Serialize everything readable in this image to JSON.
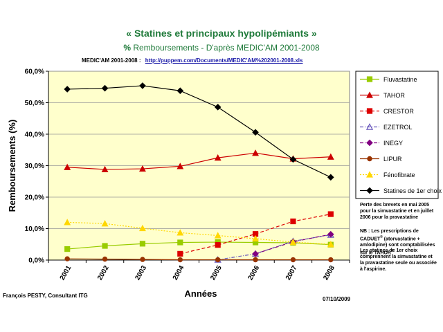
{
  "header": {
    "title": "« Statines et principaux hypolipémiants »",
    "subtitle_bold": "%",
    "subtitle_rest": "Remboursements - D'après MEDIC'AM 2001-2008",
    "source_label": "MEDIC'AM 2001-2008 :",
    "source_url": "http://puppem.com/Documents/MEDIC'AM%202001-2008.xls"
  },
  "notes": {
    "note1": "Perte des brevets en mai 2005 pour la simvastatine et en juillet 2006 pour la pravastatine",
    "note2_a": "NB : Les prescriptions de CADUET",
    "note2_sup1": "®",
    "note2_b": " (atorvastatine + amlodipine) sont comptabilisées sur le TAHOR",
    "note2_sup2": "®",
    "note3": "Les statines de 1er choix comprennent la simvastatine et la pravastatine seule ou associée à l'aspirine."
  },
  "footer": {
    "author": "François PESTY, Consultant ITG",
    "date": "07/10/2009"
  },
  "chart_data": {
    "type": "line",
    "title": "",
    "xlabel": "Années",
    "ylabel": "Remboursements (%)",
    "ylim": [
      0,
      60
    ],
    "yticks": [
      "0,0%",
      "10,0%",
      "20,0%",
      "30,0%",
      "40,0%",
      "50,0%",
      "60,0%"
    ],
    "categories": [
      "2001",
      "2002",
      "2003",
      "2004",
      "2005",
      "2006",
      "2007",
      "2008"
    ],
    "grid": true,
    "legend_position": "right",
    "plot_background": "#ffffcc",
    "series": [
      {
        "name": "Fluvastatine",
        "color": "#99cc00",
        "marker": "square",
        "dash": "solid",
        "values": [
          3.5,
          4.5,
          5.2,
          5.6,
          5.7,
          5.6,
          5.5,
          4.9
        ]
      },
      {
        "name": "TAHOR",
        "color": "#cc0000",
        "marker": "triangle",
        "dash": "solid",
        "values": [
          29.5,
          28.8,
          29.0,
          29.8,
          32.5,
          34.0,
          32.2,
          32.8
        ]
      },
      {
        "name": "CRESTOR",
        "color": "#dd0000",
        "marker": "square",
        "dash": "dashed",
        "values": [
          null,
          null,
          null,
          2.0,
          4.8,
          8.3,
          12.3,
          14.6
        ]
      },
      {
        "name": "EZETROL",
        "color": "#6655bb",
        "marker": "triangle-open",
        "dash": "dashdot",
        "values": [
          null,
          null,
          null,
          null,
          0.1,
          2.0,
          6.0,
          8.0
        ]
      },
      {
        "name": "INEGY",
        "color": "#800080",
        "marker": "diamond",
        "dash": "dashdot",
        "values": [
          null,
          null,
          null,
          null,
          null,
          2.0,
          5.8,
          8.2
        ]
      },
      {
        "name": "LIPUR",
        "color": "#993300",
        "marker": "circle",
        "dash": "solid",
        "values": [
          0.4,
          0.3,
          0.2,
          0.1,
          0.1,
          0.1,
          0.1,
          0.1
        ]
      },
      {
        "name": "Fénofibrate",
        "color": "#ffd700",
        "marker": "triangle",
        "dash": "dotted",
        "values": [
          12.0,
          11.6,
          10.1,
          8.7,
          7.8,
          6.8,
          5.7,
          5.0
        ]
      },
      {
        "name": "Statines de 1er choix",
        "color": "#000000",
        "marker": "diamond",
        "dash": "solid",
        "values": [
          54.3,
          54.6,
          55.4,
          53.8,
          48.6,
          40.6,
          32.0,
          26.3
        ]
      }
    ]
  }
}
